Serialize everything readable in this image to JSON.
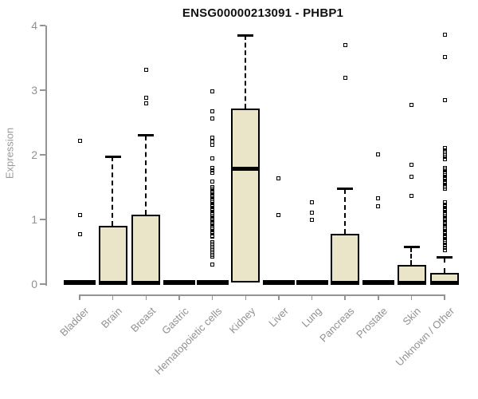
{
  "chart_data": {
    "type": "boxplot",
    "title": "ENSG00000213091 - PHBP1",
    "ylabel": "Expression",
    "xlabel": "",
    "ylim": [
      0,
      4
    ],
    "yticks": [
      0,
      1,
      2,
      3,
      4
    ],
    "grid": false,
    "legend": "none",
    "colors": {
      "box_fill": "#EAE4C8",
      "box_border": "#000000",
      "axis": "#949494",
      "tick_label": "#8f9194",
      "title": "#111111"
    },
    "categories": [
      "Bladder",
      "Brain",
      "Breast",
      "Gastric",
      "Hematopoietic cells",
      "Kidney",
      "Liver",
      "Lung",
      "Pancreas",
      "Prostate",
      "Skin",
      "Unknown / Other"
    ],
    "series": [
      {
        "label": "Bladder",
        "q1": 0,
        "median": 0.02,
        "q3": 0.02,
        "whisker_low": 0,
        "whisker_high": 0.02,
        "outliers": [
          0.77,
          1.07,
          2.21
        ]
      },
      {
        "label": "Brain",
        "q1": 0,
        "median": 0.02,
        "q3": 0.9,
        "whisker_low": 0,
        "whisker_high": 1.97,
        "outliers": []
      },
      {
        "label": "Breast",
        "q1": 0,
        "median": 0.02,
        "q3": 1.08,
        "whisker_low": 0,
        "whisker_high": 2.3,
        "outliers": [
          2.8,
          2.88,
          3.31
        ]
      },
      {
        "label": "Gastric",
        "q1": 0,
        "median": 0.02,
        "q3": 0.02,
        "whisker_low": 0,
        "whisker_high": 0.02,
        "outliers": []
      },
      {
        "label": "Hematopoietic cells",
        "q1": 0,
        "median": 0.02,
        "q3": 0.02,
        "whisker_low": 0,
        "whisker_high": 0.02,
        "outliers": [
          0.3,
          0.42,
          0.45,
          0.48,
          0.52,
          0.55,
          0.58,
          0.62,
          0.65,
          0.73,
          0.75,
          0.78,
          0.81,
          0.84,
          0.87,
          0.9,
          0.93,
          0.96,
          0.99,
          1.02,
          1.05,
          1.08,
          1.11,
          1.14,
          1.17,
          1.2,
          1.23,
          1.26,
          1.29,
          1.32,
          1.35,
          1.38,
          1.41,
          1.44,
          1.47,
          1.5,
          1.59,
          1.72,
          1.76,
          1.8,
          1.95,
          2.15,
          2.2,
          2.27,
          2.56,
          2.67,
          2.98
        ]
      },
      {
        "label": "Kidney",
        "q1": 0.02,
        "median": 1.78,
        "q3": 2.72,
        "whisker_low": 0.02,
        "whisker_high": 3.85,
        "outliers": []
      },
      {
        "label": "Liver",
        "q1": 0,
        "median": 0.02,
        "q3": 0.02,
        "whisker_low": 0,
        "whisker_high": 0.02,
        "outliers": [
          1.07,
          1.63
        ]
      },
      {
        "label": "Lung",
        "q1": 0,
        "median": 0.02,
        "q3": 0.02,
        "whisker_low": 0,
        "whisker_high": 0.02,
        "outliers": [
          1.0,
          1.1,
          1.26
        ]
      },
      {
        "label": "Pancreas",
        "q1": 0,
        "median": 0.02,
        "q3": 0.78,
        "whisker_low": 0,
        "whisker_high": 1.47,
        "outliers": [
          3.19,
          3.7
        ]
      },
      {
        "label": "Prostate",
        "q1": 0,
        "median": 0.02,
        "q3": 0.02,
        "whisker_low": 0,
        "whisker_high": 0.02,
        "outliers": [
          1.2,
          1.33,
          2.01
        ]
      },
      {
        "label": "Skin",
        "q1": 0,
        "median": 0.02,
        "q3": 0.3,
        "whisker_low": 0,
        "whisker_high": 0.57,
        "outliers": [
          1.36,
          1.66,
          1.85,
          2.77
        ]
      },
      {
        "label": "Unknown / Other",
        "q1": 0,
        "median": 0.02,
        "q3": 0.17,
        "whisker_low": 0,
        "whisker_high": 0.41,
        "outliers": [
          0.53,
          0.56,
          0.6,
          0.63,
          0.66,
          0.69,
          0.72,
          0.75,
          0.78,
          0.81,
          0.84,
          0.87,
          0.9,
          0.93,
          0.96,
          0.99,
          1.02,
          1.05,
          1.08,
          1.11,
          1.14,
          1.17,
          1.2,
          1.23,
          1.27,
          1.47,
          1.5,
          1.53,
          1.56,
          1.59,
          1.62,
          1.65,
          1.68,
          1.71,
          1.74,
          1.77,
          1.8,
          1.93,
          1.97,
          2.0,
          2.04,
          2.07,
          2.11,
          2.85,
          3.51,
          3.86
        ]
      }
    ]
  }
}
